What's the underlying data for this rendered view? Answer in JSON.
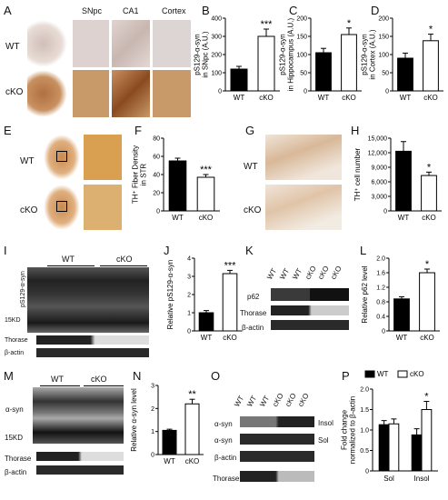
{
  "panels": {
    "A": {
      "letter": "A",
      "rows": [
        "WT",
        "cKO"
      ],
      "cols": [
        "SNpc",
        "CA1",
        "Cortex"
      ]
    },
    "B": {
      "letter": "B"
    },
    "C": {
      "letter": "C"
    },
    "D": {
      "letter": "D"
    },
    "E": {
      "letter": "E",
      "rows": [
        "WT",
        "cKO"
      ]
    },
    "F": {
      "letter": "F"
    },
    "G": {
      "letter": "G",
      "rows": [
        "WT",
        "cKO"
      ]
    },
    "H": {
      "letter": "H"
    },
    "I": {
      "letter": "I",
      "groups": [
        "WT",
        "cKO"
      ],
      "rows": [
        "pS129-α-syn",
        "15KD",
        "Thorase",
        "β-actin"
      ]
    },
    "J": {
      "letter": "J"
    },
    "K": {
      "letter": "K",
      "lanes": [
        "WT",
        "WT",
        "WT",
        "cKO",
        "cKO",
        "cKO"
      ],
      "rows": [
        "p62",
        "Thorase",
        "β-actin"
      ]
    },
    "L": {
      "letter": "L"
    },
    "M": {
      "letter": "M",
      "groups": [
        "WT",
        "cKO"
      ],
      "rows": [
        "α-syn",
        "15KD",
        "Thorase",
        "β-actin"
      ]
    },
    "N": {
      "letter": "N"
    },
    "O": {
      "letter": "O",
      "lanes": [
        "WT",
        "WT",
        "WT",
        "cKO",
        "cKO",
        "cKO"
      ],
      "rows": [
        "α-syn",
        "α-syn",
        "β-actin",
        "Thorase"
      ],
      "right": [
        "Insol",
        "Sol"
      ]
    },
    "P": {
      "letter": "P"
    }
  },
  "chart_data": [
    {
      "id": "B",
      "type": "bar",
      "categories": [
        "WT",
        "cKO"
      ],
      "values": [
        120,
        300
      ],
      "errors": [
        15,
        40
      ],
      "ylabel": "pS129-α-syn in SNpc (A.U.)",
      "ylim": [
        0,
        400
      ],
      "yticks": [
        0,
        100,
        200,
        300,
        400
      ],
      "sig": "***"
    },
    {
      "id": "C",
      "type": "bar",
      "categories": [
        "WT",
        "cKO"
      ],
      "values": [
        105,
        155
      ],
      "errors": [
        12,
        18
      ],
      "ylabel": "pS129-α-syn in Hippocampus (A.U.)",
      "ylim": [
        0,
        200
      ],
      "yticks": [
        0,
        50,
        100,
        150,
        200
      ],
      "sig": "*"
    },
    {
      "id": "D",
      "type": "bar",
      "categories": [
        "WT",
        "cKO"
      ],
      "values": [
        90,
        138
      ],
      "errors": [
        14,
        18
      ],
      "ylabel": "pS129-α-syn in Cortex (A.U.)",
      "ylim": [
        0,
        200
      ],
      "yticks": [
        0,
        50,
        100,
        150,
        200
      ],
      "sig": "*"
    },
    {
      "id": "F",
      "type": "bar",
      "categories": [
        "WT",
        "cKO"
      ],
      "values": [
        55,
        37
      ],
      "errors": [
        3,
        3
      ],
      "ylabel": "TH⁺ Fiber Density in STR",
      "ylim": [
        0,
        80
      ],
      "yticks": [
        0,
        20,
        40,
        60,
        80
      ],
      "sig": "***"
    },
    {
      "id": "H",
      "type": "bar",
      "categories": [
        "WT",
        "cKO"
      ],
      "values": [
        12300,
        7300
      ],
      "errors": [
        2000,
        700
      ],
      "ylabel": "TH⁺ cell number",
      "ylim": [
        0,
        15000
      ],
      "yticks": [
        0,
        3000,
        6000,
        9000,
        12000,
        15000
      ],
      "ytick_labels": [
        "0",
        "3,000",
        "6,000",
        "9,000",
        "12,000",
        "15,000"
      ],
      "sig": "*"
    },
    {
      "id": "J",
      "type": "bar",
      "categories": [
        "WT",
        "cKO"
      ],
      "values": [
        1.0,
        3.15
      ],
      "errors": [
        0.12,
        0.18
      ],
      "ylabel": "Relative pS129-α-syn",
      "ylim": [
        0,
        4
      ],
      "yticks": [
        0,
        1,
        2,
        3,
        4
      ],
      "sig": "***"
    },
    {
      "id": "L",
      "type": "bar",
      "categories": [
        "WT",
        "cKO"
      ],
      "values": [
        0.88,
        1.6
      ],
      "errors": [
        0.06,
        0.1
      ],
      "ylabel": "Relative p62 level",
      "ylim": [
        0,
        2.0
      ],
      "yticks": [
        0,
        0.4,
        0.8,
        1.2,
        1.6,
        2.0
      ],
      "ytick_labels": [
        "0",
        "0.4",
        "0.8",
        "1.2",
        "1.6",
        "2.0"
      ],
      "sig": "*"
    },
    {
      "id": "N",
      "type": "bar",
      "categories": [
        "WT",
        "cKO"
      ],
      "values": [
        1.05,
        2.2
      ],
      "errors": [
        0.05,
        0.2
      ],
      "ylabel": "Relative α-syn level",
      "ylim": [
        0,
        3
      ],
      "yticks": [
        0,
        1,
        2,
        3
      ],
      "sig": "**"
    },
    {
      "id": "P",
      "type": "bar",
      "categories": [
        "Sol",
        "Insol"
      ],
      "series": [
        {
          "name": "WT",
          "values": [
            1.13,
            0.88
          ],
          "errors": [
            0.1,
            0.15
          ]
        },
        {
          "name": "cKO",
          "values": [
            1.15,
            1.5
          ],
          "errors": [
            0.12,
            0.2
          ]
        }
      ],
      "ylabel": "Fold change normalized to β-actin",
      "ylim": [
        0,
        2.0
      ],
      "yticks": [
        0,
        0.5,
        1.0,
        1.5,
        2.0
      ],
      "ytick_labels": [
        "0",
        "0.5",
        "1.0",
        "1.5",
        "2.0"
      ],
      "sig": "*",
      "legend": "top"
    }
  ]
}
